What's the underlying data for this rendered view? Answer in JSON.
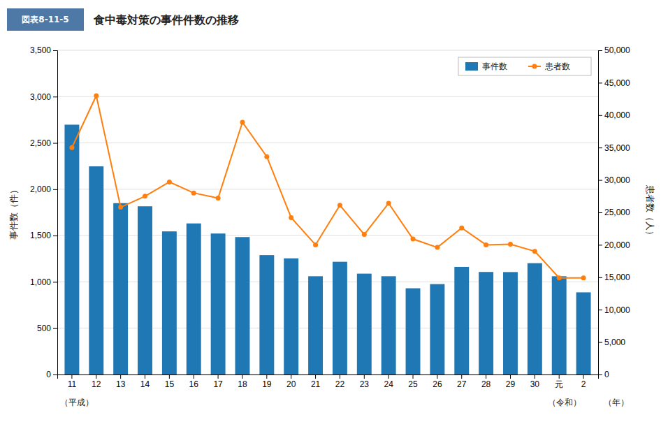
{
  "chart_data": {
    "type": "bar",
    "title": "食中毒対策の事件件数の推移",
    "subtitle": "図表8-11-5",
    "categories": [
      "11",
      "12",
      "13",
      "14",
      "15",
      "16",
      "17",
      "18",
      "19",
      "20",
      "21",
      "22",
      "23",
      "24",
      "25",
      "26",
      "27",
      "28",
      "29",
      "30",
      "元",
      "2"
    ],
    "series": [
      {
        "name": "事件数",
        "type": "bar",
        "values": [
          2697,
          2247,
          1850,
          1816,
          1545,
          1631,
          1522,
          1484,
          1289,
          1254,
          1061,
          1217,
          1089,
          1061,
          931,
          976,
          1162,
          1107,
          1106,
          1202,
          1061,
          887
        ]
      },
      {
        "name": "患者数",
        "type": "line",
        "axis": "y2",
        "marker": "circle",
        "values": [
          35000,
          43000,
          25800,
          27500,
          29700,
          28000,
          27200,
          38900,
          33600,
          24200,
          20000,
          26100,
          21600,
          26400,
          20900,
          19600,
          22600,
          20000,
          20100,
          19000,
          14900,
          14900
        ]
      }
    ],
    "xlabel": "（年）",
    "ylabel": "事件数（件）",
    "y2label": "患者数（人）",
    "ylim": [
      0,
      3500
    ],
    "yticks": [
      0,
      500,
      {
        "value": 1000,
        "label": "1,000"
      },
      {
        "value": 1500,
        "label": "1,500"
      },
      {
        "value": 2000,
        "label": "2,000"
      },
      {
        "value": 2500,
        "label": "2,500"
      },
      {
        "value": 3000,
        "label": "3,000"
      },
      {
        "value": 3500,
        "label": "3,500"
      }
    ],
    "y2lim": [
      0,
      50000
    ],
    "y2ticks": [
      0,
      {
        "value": 5000,
        "label": "5,000"
      },
      {
        "value": 10000,
        "label": "10,000"
      },
      {
        "value": 15000,
        "label": "15,000"
      },
      {
        "value": 20000,
        "label": "20,000"
      },
      {
        "value": 25000,
        "label": "25,000"
      },
      {
        "value": 30000,
        "label": "30,000"
      },
      {
        "value": 35000,
        "label": "35,000"
      },
      {
        "value": 40000,
        "label": "40,000"
      },
      {
        "value": 45000,
        "label": "45,000"
      },
      {
        "value": 50000,
        "label": "50,000"
      }
    ],
    "grid": true,
    "legend": "upper right",
    "annotations": [
      {
        "text": "（平成）",
        "category": "11"
      },
      {
        "text": "（令和）",
        "category": "元"
      }
    ]
  }
}
